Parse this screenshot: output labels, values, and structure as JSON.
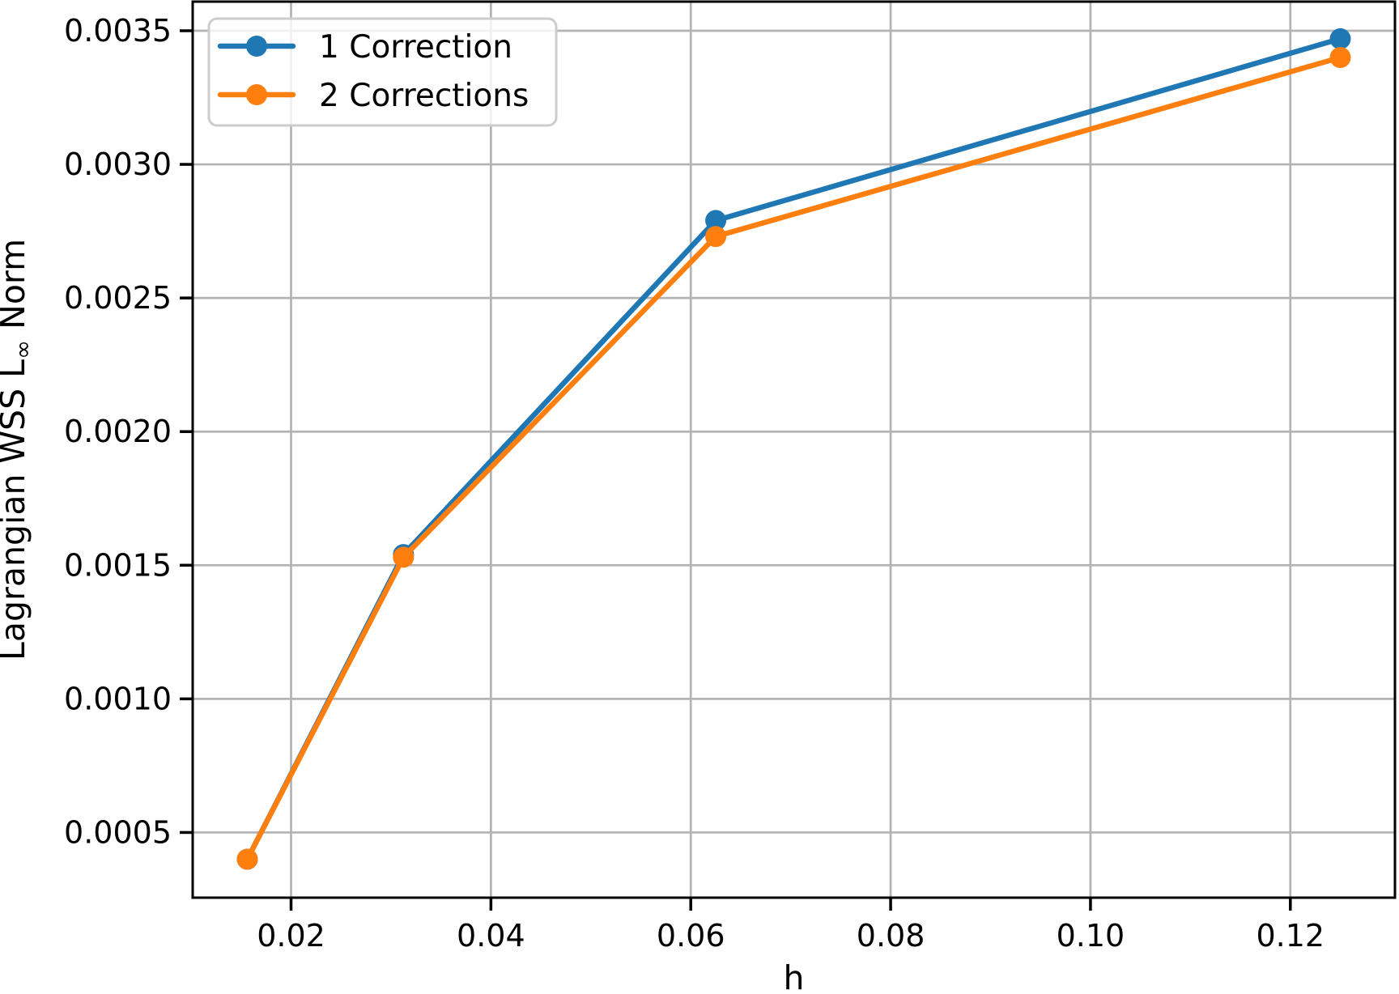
{
  "chart_data": {
    "type": "line",
    "title": "",
    "xlabel": "h",
    "ylabel": "Lagrangian WSS L∞ Norm",
    "ylabel_parts": {
      "prefix": "Lagrangian WSS L",
      "subscript": "∞",
      "suffix": " Norm"
    },
    "x": [
      0.015625,
      0.03125,
      0.0625,
      0.125
    ],
    "series": [
      {
        "name": "1 Correction",
        "color": "#1f77b4",
        "values": [
          0.0004,
          0.00154,
          0.00279,
          0.00347
        ]
      },
      {
        "name": "2 Corrections",
        "color": "#ff7f0e",
        "values": [
          0.0004,
          0.00153,
          0.00273,
          0.0034
        ]
      }
    ],
    "xlim": [
      0.0101563,
      0.1304688
    ],
    "ylim": [
      0.000256,
      0.003609
    ],
    "xticks": [
      0.02,
      0.04,
      0.06,
      0.08,
      0.1,
      0.12
    ],
    "xtick_labels": [
      "0.02",
      "0.04",
      "0.06",
      "0.08",
      "0.10",
      "0.12"
    ],
    "yticks": [
      0.0005,
      0.001,
      0.0015,
      0.002,
      0.0025,
      0.003,
      0.0035
    ],
    "ytick_labels": [
      "0.0005",
      "0.0010",
      "0.0015",
      "0.0020",
      "0.0025",
      "0.0030",
      "0.0035"
    ],
    "grid": true,
    "legend": {
      "position": "upper-left",
      "entries": [
        "1 Correction",
        "2 Corrections"
      ]
    },
    "colors": {
      "grid": "#b3b3b3",
      "spine": "#000000",
      "background": "#ffffff",
      "legend_border": "#cccccc",
      "series1": "#1f77b4",
      "series2": "#ff7f0e"
    }
  }
}
